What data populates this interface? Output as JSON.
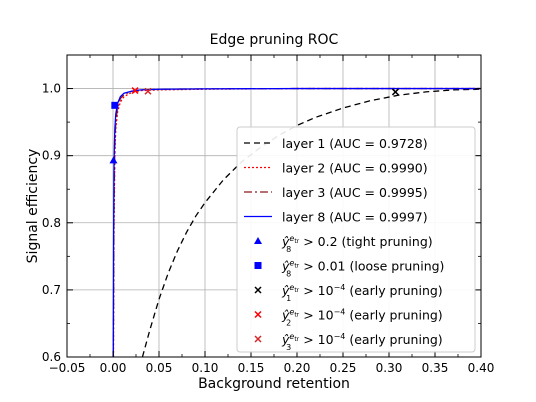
{
  "chart_data": {
    "type": "line",
    "title": "Edge pruning ROC",
    "xlabel": "Background retention",
    "ylabel": "Signal efficiency",
    "xlim": [
      -0.05,
      0.4
    ],
    "ylim": [
      0.6,
      1.05
    ],
    "grid": true,
    "legend_position": "lower-right",
    "xticks": [
      {
        "v": -0.05,
        "label": "−0.05"
      },
      {
        "v": 0.0,
        "label": "0.00"
      },
      {
        "v": 0.05,
        "label": "0.05"
      },
      {
        "v": 0.1,
        "label": "0.10"
      },
      {
        "v": 0.15,
        "label": "0.15"
      },
      {
        "v": 0.2,
        "label": "0.20"
      },
      {
        "v": 0.25,
        "label": "0.25"
      },
      {
        "v": 0.3,
        "label": "0.30"
      },
      {
        "v": 0.35,
        "label": "0.35"
      },
      {
        "v": 0.4,
        "label": "0.40"
      }
    ],
    "yticks": [
      {
        "v": 0.6,
        "label": "0.6"
      },
      {
        "v": 0.7,
        "label": "0.7"
      },
      {
        "v": 0.8,
        "label": "0.8"
      },
      {
        "v": 0.9,
        "label": "0.9"
      },
      {
        "v": 1.0,
        "label": "1.0"
      }
    ],
    "series": [
      {
        "name": "layer 1 (AUC = 0.9728)",
        "color": "#000000",
        "dash": "6,4",
        "x": [
          0.032,
          0.04,
          0.05,
          0.06,
          0.07,
          0.08,
          0.09,
          0.1,
          0.12,
          0.14,
          0.16,
          0.18,
          0.2,
          0.22,
          0.25,
          0.28,
          0.31,
          0.34,
          0.37,
          0.4
        ],
        "y": [
          0.6,
          0.64,
          0.686,
          0.725,
          0.758,
          0.786,
          0.81,
          0.83,
          0.864,
          0.891,
          0.912,
          0.93,
          0.945,
          0.957,
          0.971,
          0.982,
          0.99,
          0.995,
          0.998,
          0.999
        ]
      },
      {
        "name": "layer 2 (AUC = 0.9990)",
        "color": "#ff0000",
        "dash": "2,2",
        "x": [
          0.0005,
          0.001,
          0.002,
          0.003,
          0.005,
          0.008,
          0.012,
          0.02,
          0.03,
          0.05,
          0.1,
          0.2,
          0.4
        ],
        "y": [
          0.6,
          0.78,
          0.9,
          0.94,
          0.965,
          0.98,
          0.988,
          0.994,
          0.997,
          0.998,
          0.999,
          1.0,
          1.0
        ]
      },
      {
        "name": "layer 3 (AUC = 0.9995)",
        "color": "#8b1a1a",
        "dash": "8,3,2,3",
        "x": [
          0.0004,
          0.001,
          0.002,
          0.003,
          0.005,
          0.008,
          0.012,
          0.02,
          0.03,
          0.05,
          0.1,
          0.2,
          0.4
        ],
        "y": [
          0.6,
          0.81,
          0.915,
          0.95,
          0.972,
          0.985,
          0.991,
          0.996,
          0.998,
          0.999,
          0.9995,
          1.0,
          1.0
        ]
      },
      {
        "name": "layer 8 (AUC = 0.9997)",
        "color": "#0000ff",
        "dash": "",
        "x": [
          0.0003,
          0.0006,
          0.001,
          0.0015,
          0.002,
          0.003,
          0.005,
          0.008,
          0.012,
          0.02,
          0.03,
          0.05,
          0.1,
          0.2,
          0.4
        ],
        "y": [
          0.6,
          0.76,
          0.87,
          0.915,
          0.94,
          0.962,
          0.978,
          0.988,
          0.993,
          0.996,
          0.998,
          0.999,
          0.9995,
          1.0,
          1.0
        ]
      }
    ],
    "markers": [
      {
        "label_pre": "ŷ",
        "sub": "8",
        "sup": "e",
        "supsub": "tr",
        "label_post": " > 0.2 (tight pruning)",
        "symbol": "triangle",
        "color": "#0000ff",
        "x": 0.0005,
        "y": 0.893
      },
      {
        "label_pre": "ŷ",
        "sub": "8",
        "sup": "e",
        "supsub": "tr",
        "label_post": " > 0.01 (loose pruning)",
        "symbol": "square",
        "color": "#0000ff",
        "x": 0.002,
        "y": 0.975
      },
      {
        "label_pre": "ŷ",
        "sub": "1",
        "sup": "e",
        "supsub": "tr",
        "label_post": " > 10",
        "exp": "−4",
        "label_tail": " (early pruning)",
        "symbol": "x",
        "color": "#000000",
        "x": 0.307,
        "y": 0.995
      },
      {
        "label_pre": "ŷ",
        "sub": "2",
        "sup": "e",
        "supsub": "tr",
        "label_post": " > 10",
        "exp": "−4",
        "label_tail": " (early pruning)",
        "symbol": "x",
        "color": "#ff0000",
        "x": 0.024,
        "y": 0.997
      },
      {
        "label_pre": "ŷ",
        "sub": "3",
        "sup": "e",
        "supsub": "tr",
        "label_post": " > 10",
        "exp": "−4",
        "label_tail": " (early pruning)",
        "symbol": "x",
        "color": "#d62728",
        "x": 0.038,
        "y": 0.996
      }
    ]
  }
}
